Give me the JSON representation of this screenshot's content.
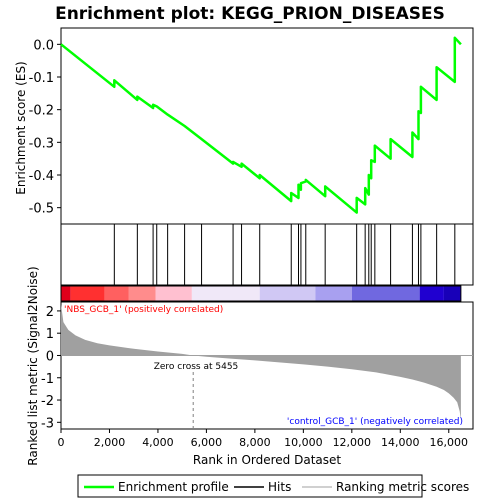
{
  "chart_data": {
    "type": "line",
    "title": "Enrichment plot: KEGG_PRION_DISEASES",
    "es_panel": {
      "ylabel": "Enrichment score (ES)",
      "ylim": [
        -0.55,
        0.05
      ],
      "yticks": [
        0.0,
        -0.1,
        -0.2,
        -0.3,
        -0.4,
        -0.5
      ],
      "ytick_labels": [
        "0.0",
        "-0.1",
        "-0.2",
        "-0.3",
        "-0.4",
        "-0.5"
      ],
      "series": [
        {
          "name": "Enrichment profile",
          "color": "#00ff00",
          "x": [
            0,
            2200,
            2200,
            3150,
            3150,
            3800,
            3800,
            3950,
            3950,
            4400,
            4400,
            5100,
            5100,
            5800,
            5800,
            7100,
            7100,
            7450,
            7450,
            8200,
            8200,
            9500,
            9500,
            9800,
            9800,
            9900,
            9900,
            10100,
            10100,
            10900,
            10900,
            12200,
            12200,
            12550,
            12550,
            12700,
            12700,
            12800,
            12800,
            12950,
            12950,
            13600,
            13600,
            14500,
            14500,
            14750,
            14750,
            14850,
            14850,
            15500,
            15500,
            16250,
            16250,
            16500
          ],
          "y": [
            0.0,
            -0.13,
            -0.11,
            -0.17,
            -0.16,
            -0.195,
            -0.185,
            -0.19,
            -0.19,
            -0.215,
            -0.215,
            -0.25,
            -0.25,
            -0.29,
            -0.29,
            -0.365,
            -0.36,
            -0.375,
            -0.365,
            -0.41,
            -0.4,
            -0.48,
            -0.455,
            -0.47,
            -0.43,
            -0.445,
            -0.425,
            -0.42,
            -0.415,
            -0.465,
            -0.435,
            -0.515,
            -0.47,
            -0.49,
            -0.44,
            -0.46,
            -0.4,
            -0.41,
            -0.355,
            -0.36,
            -0.31,
            -0.35,
            -0.29,
            -0.345,
            -0.27,
            -0.29,
            -0.205,
            -0.21,
            -0.13,
            -0.17,
            -0.07,
            -0.115,
            0.02,
            0.0
          ]
        }
      ]
    },
    "hits": [
      2200,
      3150,
      3800,
      3950,
      4400,
      5100,
      5800,
      7100,
      7450,
      8200,
      9500,
      9800,
      9900,
      10100,
      10900,
      12200,
      12550,
      12700,
      12800,
      12950,
      13600,
      14500,
      14750,
      14850,
      15500,
      16250
    ],
    "metric_panel": {
      "ylabel": "Ranked list metric (Signal2Noise)",
      "xlabel": "Rank in Ordered Dataset",
      "xlim": [
        0,
        17000
      ],
      "xticks": [
        0,
        2000,
        4000,
        6000,
        8000,
        10000,
        12000,
        14000,
        16000
      ],
      "xtick_labels": [
        "0",
        "2,000",
        "4,000",
        "6,000",
        "8,000",
        "10,000",
        "12,000",
        "14,000",
        "16,000"
      ],
      "ylim": [
        -3.3,
        2.4
      ],
      "yticks": [
        2,
        1,
        0,
        -1,
        -2,
        -3
      ],
      "ytick_labels": [
        "2",
        "1",
        "0",
        "-1",
        "-2",
        "-3"
      ],
      "n_genes": 16500,
      "metric_profile_x": [
        0,
        100,
        300,
        600,
        1000,
        1500,
        2000,
        3000,
        4000,
        5000,
        5455,
        6000,
        7000,
        8000,
        9000,
        10000,
        11000,
        12000,
        13000,
        13500,
        14000,
        14500,
        15000,
        15500,
        15800,
        16000,
        16200,
        16350,
        16450,
        16500
      ],
      "metric_profile_y": [
        2.3,
        1.5,
        1.15,
        0.9,
        0.7,
        0.55,
        0.45,
        0.3,
        0.18,
        0.07,
        0.0,
        -0.06,
        -0.14,
        -0.22,
        -0.31,
        -0.4,
        -0.5,
        -0.62,
        -0.76,
        -0.86,
        -0.96,
        -1.08,
        -1.22,
        -1.4,
        -1.55,
        -1.7,
        -1.9,
        -2.1,
        -2.5,
        -2.9
      ],
      "positive_label": "'NBS_GCB_1' (positively correlated)",
      "negative_label": "'control_GCB_1' (negatively correlated)",
      "zero_cross_label": "Zero cross at 5455",
      "zero_cross": 5455
    },
    "legend": {
      "placement": "bottom",
      "items": [
        {
          "label": "Enrichment profile",
          "color": "#00ff00"
        },
        {
          "label": "Hits",
          "color": "#000000"
        },
        {
          "label": "Ranking metric scores",
          "color": "#c0c0c0"
        }
      ]
    },
    "colors": {
      "es_line": "#00ff00",
      "hit": "#000000",
      "metric_fill": "#a0a0a0",
      "positive_label": "#ff0000",
      "negative_label": "#0000ff"
    }
  }
}
